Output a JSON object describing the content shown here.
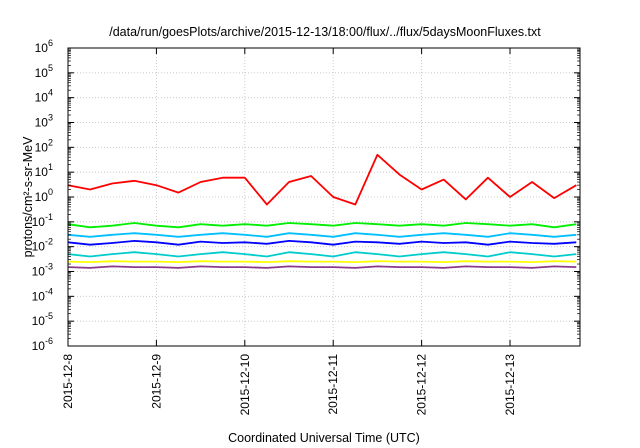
{
  "chart_data": {
    "type": "line",
    "title": "/data/run/goesPlots/archive/2015-12-13/18:00/flux/../flux/5daysMoonFluxes.txt",
    "xlabel": "Coordinated Universal Time (UTC)",
    "ylabel": "protons/cm²-s-sr-MeV",
    "yscale": "log",
    "ylim": [
      1e-06,
      1000000.0
    ],
    "xlim": [
      "2015-12-08T00:00",
      "2015-12-13T19:00"
    ],
    "grid": true,
    "legend": "none",
    "x_ticks": [
      "2015-12-8",
      "2015-12-9",
      "2015-12-10",
      "2015-12-11",
      "2015-12-12",
      "2015-12-13"
    ],
    "y_ticks": [
      {
        "base": "10",
        "exp": "-6"
      },
      {
        "base": "10",
        "exp": "-5"
      },
      {
        "base": "10",
        "exp": "-4"
      },
      {
        "base": "10",
        "exp": "-3"
      },
      {
        "base": "10",
        "exp": "-2"
      },
      {
        "base": "10",
        "exp": "-1"
      },
      {
        "base": "10",
        "exp": "0"
      },
      {
        "base": "10",
        "exp": "1"
      },
      {
        "base": "10",
        "exp": "2"
      },
      {
        "base": "10",
        "exp": "3"
      },
      {
        "base": "10",
        "exp": "4"
      },
      {
        "base": "10",
        "exp": "5"
      },
      {
        "base": "10",
        "exp": "6"
      }
    ],
    "x": [
      "2015-12-08T00:00",
      "2015-12-08T06:00",
      "2015-12-08T12:00",
      "2015-12-08T18:00",
      "2015-12-09T00:00",
      "2015-12-09T06:00",
      "2015-12-09T12:00",
      "2015-12-09T18:00",
      "2015-12-10T00:00",
      "2015-12-10T06:00",
      "2015-12-10T12:00",
      "2015-12-10T18:00",
      "2015-12-11T00:00",
      "2015-12-11T06:00",
      "2015-12-11T12:00",
      "2015-12-11T18:00",
      "2015-12-12T00:00",
      "2015-12-12T06:00",
      "2015-12-12T12:00",
      "2015-12-12T18:00",
      "2015-12-13T00:00",
      "2015-12-13T06:00",
      "2015-12-13T12:00",
      "2015-12-13T18:00"
    ],
    "series": [
      {
        "color": "#ff0000",
        "values": [
          3,
          2,
          3.5,
          4.5,
          3,
          1.5,
          4,
          6,
          6,
          0.5,
          4,
          7,
          1,
          0.5,
          50,
          8,
          2,
          5,
          0.8,
          6,
          1,
          4,
          0.9,
          3
        ]
      },
      {
        "color": "#00ee00",
        "values": [
          0.08,
          0.06,
          0.07,
          0.09,
          0.07,
          0.06,
          0.08,
          0.07,
          0.08,
          0.07,
          0.09,
          0.08,
          0.07,
          0.09,
          0.08,
          0.07,
          0.08,
          0.07,
          0.09,
          0.08,
          0.07,
          0.08,
          0.06,
          0.08
        ]
      },
      {
        "color": "#00bfff",
        "values": [
          0.03,
          0.025,
          0.03,
          0.035,
          0.03,
          0.025,
          0.03,
          0.035,
          0.03,
          0.025,
          0.035,
          0.03,
          0.025,
          0.035,
          0.03,
          0.025,
          0.03,
          0.035,
          0.03,
          0.025,
          0.035,
          0.03,
          0.025,
          0.03
        ]
      },
      {
        "color": "#0000ff",
        "values": [
          0.015,
          0.012,
          0.014,
          0.017,
          0.015,
          0.012,
          0.016,
          0.014,
          0.015,
          0.013,
          0.017,
          0.015,
          0.012,
          0.016,
          0.015,
          0.013,
          0.016,
          0.014,
          0.015,
          0.012,
          0.016,
          0.014,
          0.013,
          0.015
        ]
      },
      {
        "color": "#00cccc",
        "values": [
          0.005,
          0.004,
          0.005,
          0.006,
          0.005,
          0.004,
          0.005,
          0.006,
          0.005,
          0.004,
          0.006,
          0.005,
          0.004,
          0.006,
          0.005,
          0.004,
          0.005,
          0.006,
          0.005,
          0.004,
          0.006,
          0.005,
          0.004,
          0.005
        ]
      },
      {
        "color": "#ffff00",
        "values": [
          0.0025,
          0.0024,
          0.0026,
          0.0025,
          0.0025,
          0.0024,
          0.0026,
          0.0025,
          0.0025,
          0.0024,
          0.0026,
          0.0025,
          0.0025,
          0.0024,
          0.0026,
          0.0025,
          0.0025,
          0.0024,
          0.0026,
          0.0025,
          0.0025,
          0.0024,
          0.0026,
          0.0025
        ]
      },
      {
        "color": "#8b3a8b",
        "values": [
          0.0015,
          0.0014,
          0.0016,
          0.0015,
          0.0015,
          0.0014,
          0.0016,
          0.0015,
          0.0015,
          0.0014,
          0.0016,
          0.0015,
          0.0015,
          0.0014,
          0.0016,
          0.0015,
          0.0015,
          0.0014,
          0.0016,
          0.0015,
          0.0015,
          0.0014,
          0.0016,
          0.0015
        ]
      }
    ]
  }
}
